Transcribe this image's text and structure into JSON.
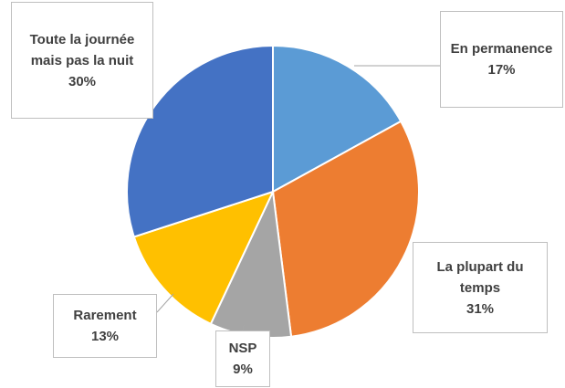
{
  "chart_data": {
    "type": "pie",
    "categories": [
      "En permanence",
      "La plupart du temps",
      "NSP",
      "Rarement",
      "Toute la journée mais pas la nuit"
    ],
    "values": [
      17,
      31,
      9,
      13,
      30
    ],
    "value_labels": [
      "17%",
      "31%",
      "9%",
      "13%",
      "30%"
    ],
    "colors": [
      "#5b9bd5",
      "#ed7d31",
      "#a5a5a5",
      "#ffc000",
      "#4472c4"
    ]
  }
}
